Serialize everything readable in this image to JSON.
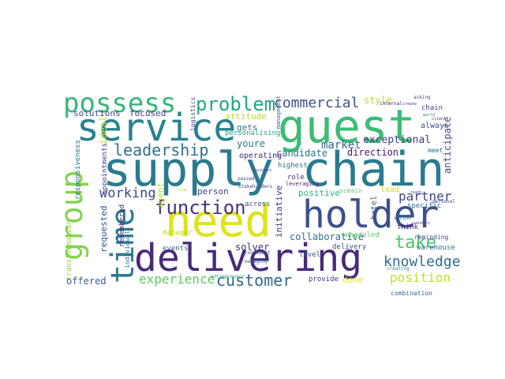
{
  "word_cloud": {
    "words": [
      {
        "text": "supply chain",
        "color": "#2a7b8e"
      },
      {
        "text": "guest",
        "color": "#3cbc74"
      },
      {
        "text": "need",
        "color": "#dfe318"
      },
      {
        "text": "delivering",
        "color": "#472a7a"
      },
      {
        "text": "holder",
        "color": "#3b518b"
      },
      {
        "text": "service",
        "color": "#26828e"
      },
      {
        "text": "possess",
        "color": "#35b779"
      },
      {
        "text": "group",
        "color": "#82d34d"
      },
      {
        "text": "time",
        "color": "#2a788e"
      },
      {
        "text": "function",
        "color": "#46327e"
      },
      {
        "text": "problem",
        "color": "#22a785"
      },
      {
        "text": "leadership",
        "color": "#2d708e"
      },
      {
        "text": "commercial",
        "color": "#3b528b"
      },
      {
        "text": "customer",
        "color": "#31688e"
      },
      {
        "text": "take",
        "color": "#4ac16d"
      },
      {
        "text": "knowledge",
        "color": "#2e6e8e"
      },
      {
        "text": "working",
        "color": "#3e4989"
      },
      {
        "text": "experience",
        "color": "#5dc863"
      },
      {
        "text": "position",
        "color": "#c2df23"
      },
      {
        "text": "partner",
        "color": "#404588"
      },
      {
        "text": "market",
        "color": "#32648e"
      },
      {
        "text": "exceptional",
        "color": "#433e85"
      },
      {
        "text": "direction",
        "color": "#48186a"
      },
      {
        "text": "candidate",
        "color": "#2c728e"
      },
      {
        "text": "collaborative",
        "color": "#2e6e8e"
      },
      {
        "text": "youre",
        "color": "#297a8e"
      },
      {
        "text": "operating",
        "color": "#482979"
      },
      {
        "text": "focused",
        "color": "#424086"
      },
      {
        "text": "solutions",
        "color": "#3e4a89"
      },
      {
        "text": "attitude",
        "color": "#b5de2b"
      },
      {
        "text": "gets",
        "color": "#2a788e"
      },
      {
        "text": "style",
        "color": "#b8de29"
      },
      {
        "text": "always",
        "color": "#3e4c8a"
      },
      {
        "text": "anticipate",
        "color": "#3d4d8a"
      },
      {
        "text": "chain",
        "color": "#3f4889"
      },
      {
        "text": "meet",
        "color": "#2f6b8e"
      },
      {
        "text": "highest",
        "color": "#2c728e"
      },
      {
        "text": "role",
        "color": "#46337f"
      },
      {
        "text": "lead",
        "color": "#c8e020"
      },
      {
        "text": "hotel",
        "color": "#375a8c"
      },
      {
        "text": "specific",
        "color": "#31688e"
      },
      {
        "text": "positive",
        "color": "#2fb47c"
      },
      {
        "text": "across",
        "color": "#3d4e8a"
      },
      {
        "text": "person",
        "color": "#443a83"
      },
      {
        "text": "agent",
        "color": "#b2dd2d"
      },
      {
        "text": "requested",
        "color": "#3b528b"
      },
      {
        "text": "remembered",
        "color": "#482576"
      },
      {
        "text": "individual",
        "color": "#2c718e"
      },
      {
        "text": "appointments",
        "color": "#3f4788"
      },
      {
        "text": "ideal",
        "color": "#bddf26"
      },
      {
        "text": "responsiveness",
        "color": "#2c728e"
      },
      {
        "text": "transformation",
        "color": "#8ed645"
      },
      {
        "text": "offered",
        "color": "#355f8d"
      },
      {
        "text": "done",
        "color": "#eae51a"
      },
      {
        "text": "provide",
        "color": "#46307e"
      },
      {
        "text": "combination",
        "color": "#31688e"
      },
      {
        "text": "warehouse",
        "color": "#2a778e"
      },
      {
        "text": "reminding",
        "color": "#3e4989"
      },
      {
        "text": "think",
        "color": "#482173"
      },
      {
        "text": "delivery",
        "color": "#3b528b"
      },
      {
        "text": "personalising",
        "color": "#22a884"
      },
      {
        "text": "level",
        "color": "#3a538b"
      },
      {
        "text": "solver",
        "color": "#472c7a"
      },
      {
        "text": "events",
        "color": "#31688e"
      },
      {
        "text": "manager",
        "color": "#b8de29"
      },
      {
        "text": "initiative",
        "color": "#46327e"
      },
      {
        "text": "scheduled",
        "color": "#65cb5e"
      },
      {
        "text": "logistics",
        "color": "#3f4889"
      },
      {
        "text": "management",
        "color": "#34618d"
      },
      {
        "text": "oceain",
        "color": "#5ec962"
      },
      {
        "text": "leveraging",
        "color": "#482979"
      },
      {
        "text": "asking",
        "color": "#3b528b"
      },
      {
        "text": "internal",
        "color": "#482475"
      },
      {
        "text": "create",
        "color": "#472d7b"
      },
      {
        "text": "world",
        "color": "#2d708e"
      },
      {
        "text": "client",
        "color": "#46337f"
      },
      {
        "text": "passed",
        "color": "#3e4989"
      },
      {
        "text": "stakeholders",
        "color": "#443a83"
      },
      {
        "text": "confident",
        "color": "#3b528b"
      },
      {
        "text": "managing",
        "color": "#2e6e8e"
      },
      {
        "text": "entrepreneur",
        "color": "#1fa088"
      },
      {
        "text": "creating",
        "color": "#26828e"
      },
      {
        "text": "vendors",
        "color": "#3e4a89"
      },
      {
        "text": "personal",
        "color": "#3f4889"
      },
      {
        "text": "action",
        "color": "#2c728e"
      },
      {
        "text": "true",
        "color": "#a0da39"
      },
      {
        "text": "ready",
        "color": "#3b528b"
      },
      {
        "text": "business",
        "color": "#414487"
      }
    ]
  }
}
